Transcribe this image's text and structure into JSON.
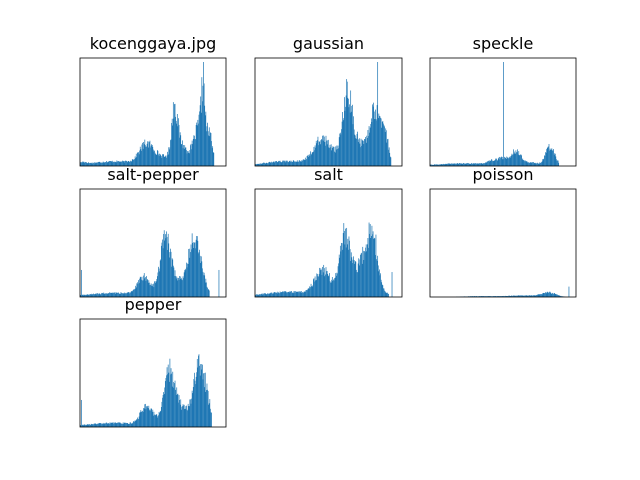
{
  "chart_data": [
    {
      "type": "histogram",
      "title": "kocenggaya.jpg",
      "xlim": [
        0,
        255
      ],
      "ylim": [
        0,
        1
      ],
      "baseline": 0.004,
      "spikes": [],
      "peaks": [
        {
          "center": 5,
          "width": 6,
          "height": 0.02
        },
        {
          "center": 60,
          "width": 40,
          "height": 0.04
        },
        {
          "center": 115,
          "width": 12,
          "height": 0.16
        },
        {
          "center": 140,
          "width": 20,
          "height": 0.08
        },
        {
          "center": 165,
          "width": 5,
          "height": 0.42
        },
        {
          "center": 175,
          "width": 10,
          "height": 0.2
        },
        {
          "center": 212,
          "width": 12,
          "height": 0.42
        },
        {
          "center": 215,
          "width": 3,
          "height": 0.35
        },
        {
          "center": 228,
          "width": 4,
          "height": 0.12
        }
      ],
      "max_bar": {
        "x": 216,
        "value": 1
      },
      "cutoff": 234
    },
    {
      "type": "histogram",
      "title": "gaussian",
      "xlim": [
        0,
        255
      ],
      "ylim": [
        0,
        1
      ],
      "baseline": 0.006,
      "spikes": [],
      "peaks": [
        {
          "center": 60,
          "width": 40,
          "height": 0.04
        },
        {
          "center": 115,
          "width": 14,
          "height": 0.2
        },
        {
          "center": 140,
          "width": 20,
          "height": 0.08
        },
        {
          "center": 160,
          "width": 8,
          "height": 0.55
        },
        {
          "center": 175,
          "width": 12,
          "height": 0.2
        },
        {
          "center": 210,
          "width": 12,
          "height": 0.55
        },
        {
          "center": 228,
          "width": 4,
          "height": 0.12
        }
      ],
      "max_bar": {
        "x": 213,
        "value": 1
      },
      "cutoff": 236
    },
    {
      "type": "histogram",
      "title": "speckle",
      "xlim": [
        0,
        255
      ],
      "ylim": [
        0,
        1
      ],
      "baseline": 0.005,
      "spikes": [],
      "peaks": [
        {
          "center": 60,
          "width": 40,
          "height": 0.02
        },
        {
          "center": 110,
          "width": 10,
          "height": 0.04
        },
        {
          "center": 128,
          "width": 8,
          "height": 0.06
        },
        {
          "center": 150,
          "width": 8,
          "height": 0.14
        },
        {
          "center": 175,
          "width": 12,
          "height": 0.03
        },
        {
          "center": 210,
          "width": 8,
          "height": 0.18
        }
      ],
      "max_bar": {
        "x": 128,
        "value": 1
      },
      "cutoff": 225
    },
    {
      "type": "histogram",
      "title": "salt-pepper",
      "xlim": [
        0,
        255
      ],
      "ylim": [
        0,
        1
      ],
      "baseline": 0.008,
      "spikes": [
        {
          "x": 2,
          "value": 0.26
        },
        {
          "x": 243,
          "value": 0.26
        }
      ],
      "peaks": [
        {
          "center": 60,
          "width": 40,
          "height": 0.03
        },
        {
          "center": 110,
          "width": 10,
          "height": 0.15
        },
        {
          "center": 140,
          "width": 20,
          "height": 0.06
        },
        {
          "center": 148,
          "width": 8,
          "height": 0.38
        },
        {
          "center": 160,
          "width": 12,
          "height": 0.18
        },
        {
          "center": 200,
          "width": 12,
          "height": 0.55
        }
      ],
      "max_bar": {
        "x": 203,
        "value": 0.55
      },
      "cutoff": 226
    },
    {
      "type": "histogram",
      "title": "salt",
      "xlim": [
        0,
        255
      ],
      "ylim": [
        0,
        1
      ],
      "baseline": 0.008,
      "spikes": [
        {
          "x": 238,
          "value": 0.24
        }
      ],
      "peaks": [
        {
          "center": 60,
          "width": 40,
          "height": 0.04
        },
        {
          "center": 115,
          "width": 12,
          "height": 0.2
        },
        {
          "center": 140,
          "width": 20,
          "height": 0.08
        },
        {
          "center": 155,
          "width": 8,
          "height": 0.45
        },
        {
          "center": 170,
          "width": 12,
          "height": 0.2
        },
        {
          "center": 200,
          "width": 12,
          "height": 0.58
        }
      ],
      "max_bar": {
        "x": 210,
        "value": 0.6
      },
      "cutoff": 232
    },
    {
      "type": "histogram",
      "title": "poisson",
      "xlim": [
        0,
        255
      ],
      "ylim": [
        0,
        1
      ],
      "baseline": 0.0,
      "spikes": [
        {
          "x": 243,
          "value": 0.1
        }
      ],
      "peaks": [
        {
          "center": 90,
          "width": 30,
          "height": 0.008
        },
        {
          "center": 165,
          "width": 25,
          "height": 0.015
        },
        {
          "center": 208,
          "width": 12,
          "height": 0.04
        }
      ],
      "max_bar": {
        "x": 243,
        "value": 0.1
      },
      "cutoff": 244
    },
    {
      "type": "histogram",
      "title": "pepper",
      "xlim": [
        0,
        255
      ],
      "ylim": [
        0,
        1
      ],
      "baseline": 0.008,
      "spikes": [
        {
          "x": 2,
          "value": 0.26
        }
      ],
      "peaks": [
        {
          "center": 60,
          "width": 40,
          "height": 0.03
        },
        {
          "center": 115,
          "width": 10,
          "height": 0.15
        },
        {
          "center": 140,
          "width": 20,
          "height": 0.06
        },
        {
          "center": 155,
          "width": 8,
          "height": 0.4
        },
        {
          "center": 170,
          "width": 12,
          "height": 0.2
        },
        {
          "center": 210,
          "width": 12,
          "height": 0.58
        }
      ],
      "max_bar": {
        "x": 214,
        "value": 0.6
      },
      "cutoff": 230
    }
  ],
  "colors": {
    "bar": "#1f77b4",
    "axes_edge": "#000000",
    "background": "#ffffff"
  }
}
